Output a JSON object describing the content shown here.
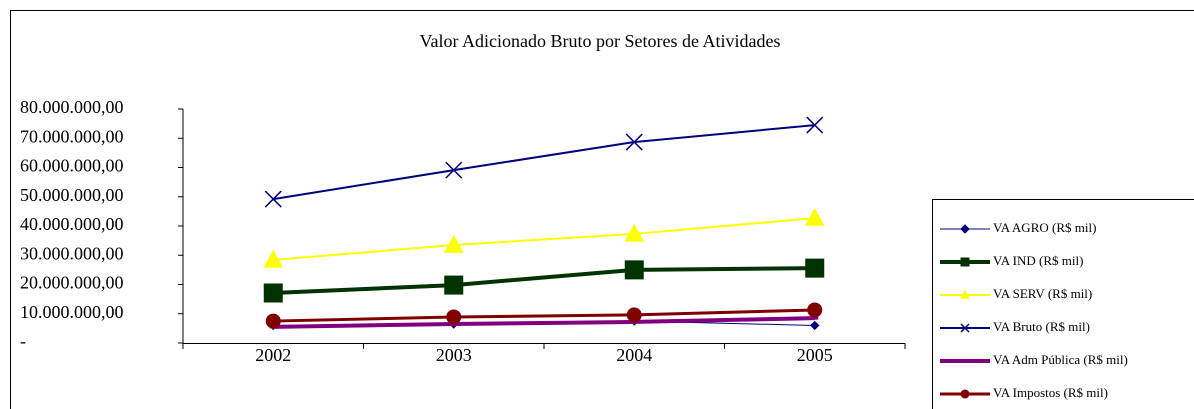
{
  "chart_data": {
    "type": "line",
    "title": "Valor Adicionado Bruto por Setores de Atividades",
    "categories": [
      "2002",
      "2003",
      "2004",
      "2005"
    ],
    "ylim": [
      0,
      80000000
    ],
    "yticks": [
      {
        "value": 0,
        "label": "-"
      },
      {
        "value": 10000000,
        "label": "10.000.000,00"
      },
      {
        "value": 20000000,
        "label": "20.000.000,00"
      },
      {
        "value": 30000000,
        "label": "30.000.000,00"
      },
      {
        "value": 40000000,
        "label": "40.000.000,00"
      },
      {
        "value": 50000000,
        "label": "50.000.000,00"
      },
      {
        "value": 60000000,
        "label": "60.000.000,00"
      },
      {
        "value": 70000000,
        "label": "70.000.000,00"
      },
      {
        "value": 80000000,
        "label": "80.000.000,00"
      }
    ],
    "legend": "right",
    "series": [
      {
        "name": "VA AGRO (R$ mil)",
        "color": "#000080",
        "marker": "diamond",
        "width": 1,
        "values": [
          6000000,
          6500000,
          7500000,
          6000000
        ]
      },
      {
        "name": "VA IND (R$ mil)",
        "color": "#003300",
        "marker": "square",
        "width": 4,
        "values": [
          17100000,
          19800000,
          25000000,
          25600000
        ]
      },
      {
        "name": "VA SERV (R$ mil)",
        "color": "#ffff00",
        "marker": "triangle",
        "width": 2,
        "values": [
          28400000,
          33500000,
          37300000,
          42700000
        ]
      },
      {
        "name": "VA Bruto (R$ mil)",
        "color": "#000080",
        "marker": "x",
        "width": 2,
        "values": [
          49200000,
          59100000,
          68700000,
          74500000
        ]
      },
      {
        "name": "VA Adm Pública (R$ mil)",
        "color": "#800080",
        "marker": "dash",
        "width": 4,
        "values": [
          5500000,
          6500000,
          7200000,
          8500000
        ]
      },
      {
        "name": "VA Impostos (R$ mil)",
        "color": "#800000",
        "marker": "circle",
        "width": 3,
        "values": [
          7500000,
          8900000,
          9600000,
          11300000
        ]
      }
    ]
  }
}
